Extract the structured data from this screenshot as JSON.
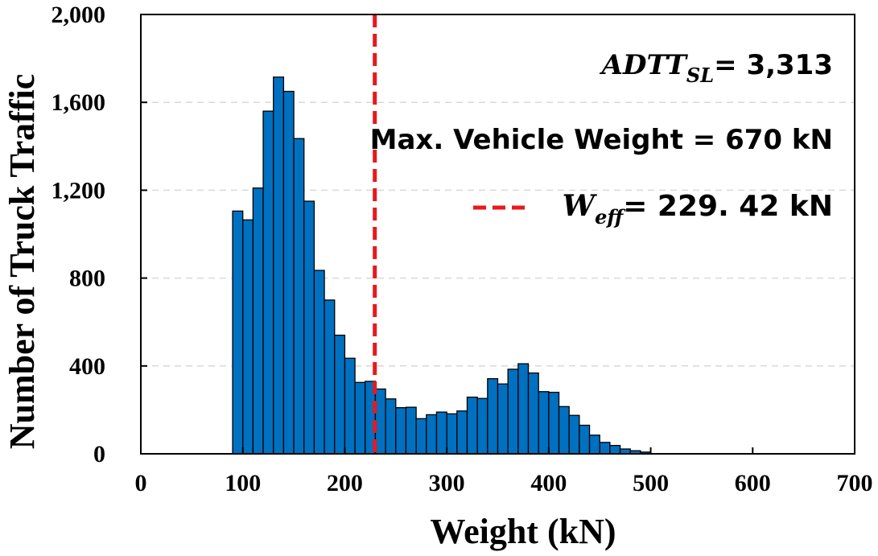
{
  "chart_data": {
    "type": "bar",
    "xlabel": "Weight (kN)",
    "ylabel": "Number of Truck Traffic",
    "xlim": [
      0,
      700
    ],
    "ylim": [
      0,
      2000
    ],
    "x_ticks": [
      "0",
      "100",
      "200",
      "300",
      "400",
      "500",
      "600",
      "700"
    ],
    "y_ticks": [
      "0",
      "400",
      "800",
      "1,200",
      "1,600",
      "2,000"
    ],
    "grid": "horizontal dashed",
    "bar_color": "#0070C0",
    "bin_width": 10,
    "bins": [
      {
        "x": 95,
        "y": 1105
      },
      {
        "x": 105,
        "y": 1065
      },
      {
        "x": 115,
        "y": 1210
      },
      {
        "x": 125,
        "y": 1560
      },
      {
        "x": 135,
        "y": 1715
      },
      {
        "x": 145,
        "y": 1650
      },
      {
        "x": 155,
        "y": 1435
      },
      {
        "x": 165,
        "y": 1150
      },
      {
        "x": 175,
        "y": 835
      },
      {
        "x": 185,
        "y": 700
      },
      {
        "x": 195,
        "y": 540
      },
      {
        "x": 205,
        "y": 435
      },
      {
        "x": 215,
        "y": 325
      },
      {
        "x": 225,
        "y": 330
      },
      {
        "x": 235,
        "y": 295
      },
      {
        "x": 245,
        "y": 250
      },
      {
        "x": 255,
        "y": 210
      },
      {
        "x": 265,
        "y": 212
      },
      {
        "x": 275,
        "y": 160
      },
      {
        "x": 285,
        "y": 178
      },
      {
        "x": 295,
        "y": 190
      },
      {
        "x": 305,
        "y": 182
      },
      {
        "x": 315,
        "y": 195
      },
      {
        "x": 325,
        "y": 258
      },
      {
        "x": 335,
        "y": 252
      },
      {
        "x": 345,
        "y": 342
      },
      {
        "x": 355,
        "y": 318
      },
      {
        "x": 365,
        "y": 385
      },
      {
        "x": 375,
        "y": 410
      },
      {
        "x": 385,
        "y": 368
      },
      {
        "x": 395,
        "y": 283
      },
      {
        "x": 405,
        "y": 280
      },
      {
        "x": 415,
        "y": 215
      },
      {
        "x": 425,
        "y": 175
      },
      {
        "x": 435,
        "y": 130
      },
      {
        "x": 445,
        "y": 85
      },
      {
        "x": 455,
        "y": 52
      },
      {
        "x": 465,
        "y": 38
      },
      {
        "x": 475,
        "y": 22
      },
      {
        "x": 485,
        "y": 14
      },
      {
        "x": 495,
        "y": 8
      }
    ],
    "reference_line": {
      "x": 229.42,
      "color": "#E8191E",
      "style": "dashed"
    },
    "annotations": {
      "adtt": {
        "main": "ADTT",
        "sub": "SL",
        "value": "= 3,313"
      },
      "max_weight": "Max. Vehicle Weight = 670 kN",
      "weff": {
        "main": "W",
        "sub": "eff",
        "value": "= 229. 42 kN"
      }
    }
  }
}
